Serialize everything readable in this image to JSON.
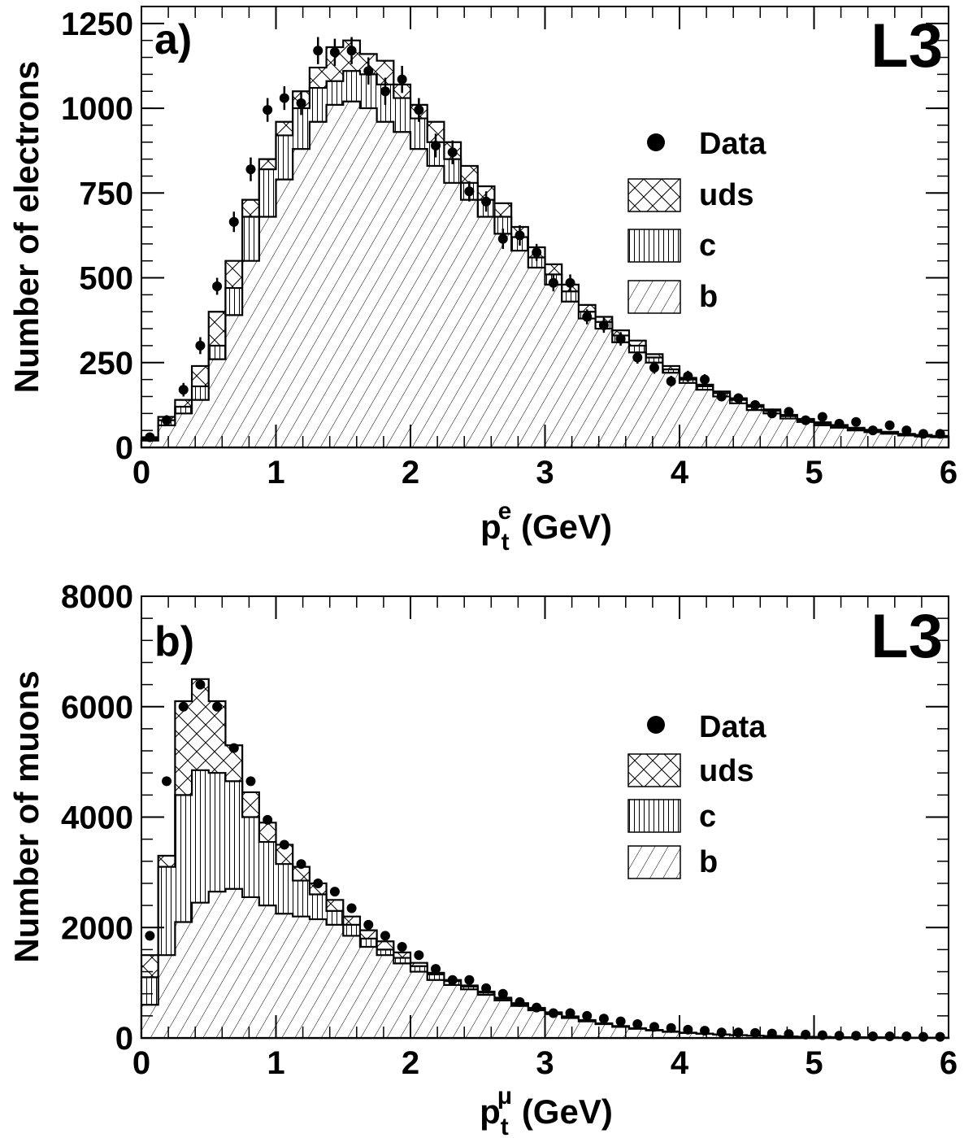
{
  "chart_data": [
    {
      "type": "bar",
      "panel_label": "a)",
      "experiment": "L3",
      "xlabel": "p",
      "xlabel_sub": "t",
      "xlabel_sup": "e",
      "xlabel_unit": " (GeV)",
      "ylabel": "Number of electrons",
      "xlim": [
        0,
        6
      ],
      "ylim": [
        0,
        1300
      ],
      "xticks": [
        0,
        1,
        2,
        3,
        4,
        5,
        6
      ],
      "yticks": [
        0,
        250,
        500,
        750,
        1000,
        1250
      ],
      "bin_width": 0.125,
      "legend": [
        {
          "label": "Data",
          "kind": "marker"
        },
        {
          "label": "uds",
          "kind": "crosshatch"
        },
        {
          "label": "c",
          "kind": "vertical"
        },
        {
          "label": "b",
          "kind": "diagonal"
        }
      ],
      "series": [
        {
          "name": "b",
          "values": [
            20,
            65,
            100,
            140,
            260,
            390,
            550,
            680,
            790,
            880,
            960,
            1010,
            1020,
            1000,
            960,
            930,
            880,
            830,
            780,
            730,
            680,
            630,
            580,
            530,
            480,
            430,
            380,
            350,
            310,
            280,
            250,
            220,
            190,
            170,
            150,
            130,
            110,
            100,
            85,
            75,
            65,
            58,
            50,
            45,
            40,
            35,
            32,
            30
          ]
        },
        {
          "name": "c",
          "values": [
            25,
            80,
            120,
            180,
            300,
            470,
            680,
            820,
            920,
            1000,
            1060,
            1080,
            1110,
            1100,
            1070,
            1030,
            970,
            900,
            850,
            780,
            730,
            680,
            620,
            560,
            510,
            460,
            400,
            370,
            330,
            300,
            265,
            230,
            200,
            180,
            160,
            140,
            120,
            108,
            92,
            80,
            70,
            63,
            55,
            49,
            44,
            38,
            35,
            32
          ]
        },
        {
          "name": "uds",
          "values": [
            30,
            90,
            140,
            240,
            400,
            550,
            730,
            850,
            960,
            1050,
            1120,
            1180,
            1200,
            1160,
            1140,
            1070,
            1010,
            960,
            900,
            830,
            770,
            720,
            650,
            590,
            540,
            480,
            420,
            385,
            345,
            315,
            275,
            240,
            205,
            185,
            165,
            145,
            125,
            112,
            96,
            84,
            74,
            66,
            58,
            52,
            46,
            40,
            37,
            34
          ]
        }
      ],
      "data_points": {
        "x": [
          0.0625,
          0.1875,
          0.3125,
          0.4375,
          0.5625,
          0.6875,
          0.8125,
          0.9375,
          1.0625,
          1.1875,
          1.3125,
          1.4375,
          1.5625,
          1.6875,
          1.8125,
          1.9375,
          2.0625,
          2.1875,
          2.3125,
          2.4375,
          2.5625,
          2.6875,
          2.8125,
          2.9375,
          3.0625,
          3.1875,
          3.3125,
          3.4375,
          3.5625,
          3.6875,
          3.8125,
          3.9375,
          4.0625,
          4.1875,
          4.3125,
          4.4375,
          4.5625,
          4.6875,
          4.8125,
          4.9375,
          5.0625,
          5.1875,
          5.3125,
          5.4375,
          5.5625,
          5.6875,
          5.8125,
          5.9375
        ],
        "y": [
          30,
          80,
          170,
          300,
          475,
          665,
          820,
          995,
          1030,
          1015,
          1170,
          1165,
          1170,
          1110,
          1050,
          1085,
          995,
          890,
          870,
          755,
          725,
          615,
          625,
          575,
          485,
          485,
          385,
          360,
          320,
          265,
          235,
          195,
          210,
          200,
          150,
          145,
          125,
          100,
          105,
          80,
          90,
          70,
          75,
          50,
          65,
          50,
          40,
          40
        ],
        "err": [
          10,
          15,
          20,
          25,
          25,
          30,
          35,
          35,
          35,
          35,
          40,
          40,
          40,
          40,
          40,
          40,
          35,
          35,
          35,
          30,
          30,
          30,
          30,
          25,
          25,
          25,
          22,
          22,
          20,
          18,
          18,
          16,
          16,
          16,
          14,
          14,
          12,
          12,
          12,
          10,
          10,
          10,
          10,
          9,
          9,
          8,
          8,
          8
        ]
      }
    },
    {
      "type": "bar",
      "panel_label": "b)",
      "experiment": "L3",
      "xlabel": "p",
      "xlabel_sub": "t",
      "xlabel_sup": "μ",
      "xlabel_unit": " (GeV)",
      "ylabel": "Number of muons",
      "xlim": [
        0,
        6
      ],
      "ylim": [
        0,
        8000
      ],
      "xticks": [
        0,
        1,
        2,
        3,
        4,
        5,
        6
      ],
      "yticks": [
        0,
        2000,
        4000,
        6000,
        8000
      ],
      "bin_width": 0.125,
      "legend": [
        {
          "label": "Data",
          "kind": "marker"
        },
        {
          "label": "uds",
          "kind": "crosshatch"
        },
        {
          "label": "c",
          "kind": "vertical"
        },
        {
          "label": "b",
          "kind": "diagonal"
        }
      ],
      "series": [
        {
          "name": "b",
          "values": [
            600,
            1500,
            2100,
            2450,
            2650,
            2700,
            2550,
            2400,
            2250,
            2200,
            2150,
            2050,
            1850,
            1650,
            1500,
            1350,
            1200,
            1050,
            960,
            880,
            780,
            680,
            580,
            500,
            430,
            360,
            300,
            250,
            200,
            165,
            135,
            110,
            90,
            75,
            60,
            50,
            40,
            32,
            26,
            20,
            16,
            13,
            10,
            8,
            7,
            6,
            5,
            4
          ]
        },
        {
          "name": "c",
          "values": [
            1100,
            3100,
            4400,
            4850,
            4800,
            4650,
            4000,
            3550,
            3150,
            2850,
            2600,
            2300,
            2050,
            1800,
            1600,
            1450,
            1300,
            1150,
            1030,
            930,
            820,
            710,
            610,
            525,
            450,
            375,
            310,
            255,
            205,
            170,
            140,
            115,
            94,
            78,
            62,
            51,
            41,
            33,
            27,
            21,
            17,
            13,
            11,
            9,
            7,
            6,
            5,
            4
          ]
        },
        {
          "name": "uds",
          "values": [
            1500,
            3300,
            6100,
            6500,
            6100,
            5300,
            4450,
            3900,
            3500,
            3100,
            2800,
            2500,
            2200,
            1950,
            1750,
            1550,
            1360,
            1180,
            1050,
            950,
            840,
            730,
            630,
            545,
            465,
            390,
            325,
            265,
            215,
            178,
            145,
            118,
            97,
            80,
            64,
            52,
            42,
            34,
            28,
            22,
            18,
            14,
            11,
            9,
            7,
            6,
            5,
            4
          ]
        }
      ],
      "data_points": {
        "x": [
          0.0625,
          0.1875,
          0.3125,
          0.4375,
          0.5625,
          0.6875,
          0.8125,
          0.9375,
          1.0625,
          1.1875,
          1.3125,
          1.4375,
          1.5625,
          1.6875,
          1.8125,
          1.9375,
          2.0625,
          2.1875,
          2.3125,
          2.4375,
          2.5625,
          2.6875,
          2.8125,
          2.9375,
          3.0625,
          3.1875,
          3.3125,
          3.4375,
          3.5625,
          3.6875,
          3.8125,
          3.9375,
          4.0625,
          4.1875,
          4.3125,
          4.4375,
          4.5625,
          4.6875,
          4.8125,
          4.9375,
          5.0625,
          5.1875,
          5.3125,
          5.4375,
          5.5625,
          5.6875,
          5.8125,
          5.9375
        ],
        "y": [
          1850,
          4650,
          6000,
          6400,
          6000,
          5250,
          4650,
          3950,
          3500,
          3150,
          2800,
          2650,
          2350,
          2050,
          1850,
          1650,
          1500,
          1250,
          1050,
          1050,
          900,
          800,
          650,
          550,
          450,
          450,
          400,
          350,
          300,
          250,
          200,
          180,
          150,
          130,
          100,
          100,
          90,
          80,
          70,
          60,
          50,
          40,
          40,
          30,
          30,
          30,
          20,
          20
        ]
      }
    }
  ]
}
